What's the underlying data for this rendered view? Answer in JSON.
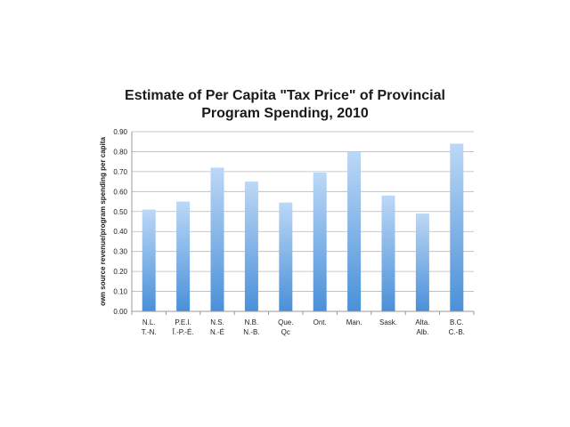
{
  "chart_data": {
    "type": "bar",
    "title_lines": [
      "Estimate of Per Capita \"Tax Price\" of Provincial",
      "Program Spending, 2010"
    ],
    "xlabel": "",
    "ylabel": "own source revenue/program spending per capita",
    "ylim": [
      0,
      0.9
    ],
    "yticks": [
      "0.00",
      "0.10",
      "0.20",
      "0.30",
      "0.40",
      "0.50",
      "0.60",
      "0.70",
      "0.80",
      "0.90"
    ],
    "grid": true,
    "categories": [
      [
        "N.L.",
        "T.-N."
      ],
      [
        "P.E.I.",
        "Î.-P.-É."
      ],
      [
        "N.S.",
        "N.-É"
      ],
      [
        "N.B.",
        "N.-B."
      ],
      [
        "Que.",
        "Qc"
      ],
      [
        "Ont.",
        ""
      ],
      [
        "Man.",
        ""
      ],
      [
        "Sask.",
        ""
      ],
      [
        "Alta.",
        "Alb."
      ],
      [
        "B.C.",
        "C.-B."
      ]
    ],
    "values": [
      0.51,
      0.55,
      0.72,
      0.65,
      0.545,
      0.695,
      0.8,
      0.58,
      0.49,
      0.84
    ]
  },
  "colors": {
    "bar_top": "#bcd8f6",
    "bar_bottom": "#4a90d9",
    "grid": "#b8b8b8",
    "axis": "#999999"
  }
}
